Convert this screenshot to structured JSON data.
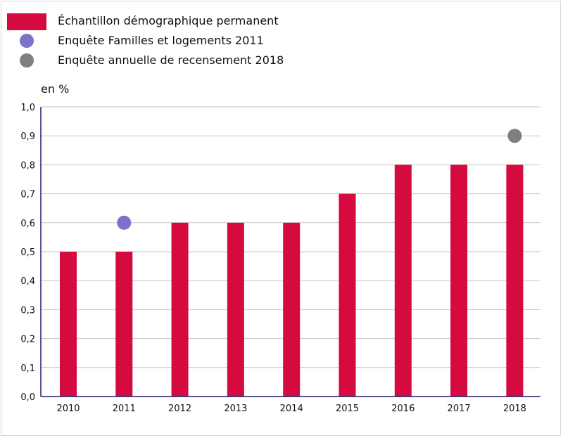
{
  "colors": {
    "bar": "#d50a3f",
    "famille": "#7c72c9",
    "recensement": "#7f7f7f",
    "grid": "#c5c5c5",
    "axis": "#1a1a72"
  },
  "legend": [
    {
      "label": "Échantillon démographique permanent",
      "shape": "rect",
      "color": "#d50a3f"
    },
    {
      "label": "Enquête Familles et logements 2011",
      "shape": "circle",
      "color": "#7c72c9"
    },
    {
      "label": "Enquête annuelle de recensement 2018",
      "shape": "circle",
      "color": "#7f7f7f"
    }
  ],
  "chart_data": {
    "type": "bar",
    "ylabel": "en %",
    "ylim": [
      0,
      1.0
    ],
    "yticks": [
      "0,0",
      "0,1",
      "0,2",
      "0,3",
      "0,4",
      "0,5",
      "0,6",
      "0,7",
      "0,8",
      "0,9",
      "1,0"
    ],
    "grid": true,
    "categories": [
      "2010",
      "2011",
      "2012",
      "2013",
      "2014",
      "2015",
      "2016",
      "2017",
      "2018"
    ],
    "series": [
      {
        "name": "Échantillon démographique permanent",
        "type": "bar",
        "color": "#d50a3f",
        "values": [
          0.5,
          0.5,
          0.6,
          0.6,
          0.6,
          0.7,
          0.8,
          0.8,
          0.8
        ]
      },
      {
        "name": "Enquête Familles et logements 2011",
        "type": "point",
        "color": "#7c72c9",
        "points": [
          {
            "x": "2011",
            "y": 0.6
          }
        ]
      },
      {
        "name": "Enquête annuelle de recensement 2018",
        "type": "point",
        "color": "#7f7f7f",
        "points": [
          {
            "x": "2018",
            "y": 0.9
          }
        ]
      }
    ]
  }
}
